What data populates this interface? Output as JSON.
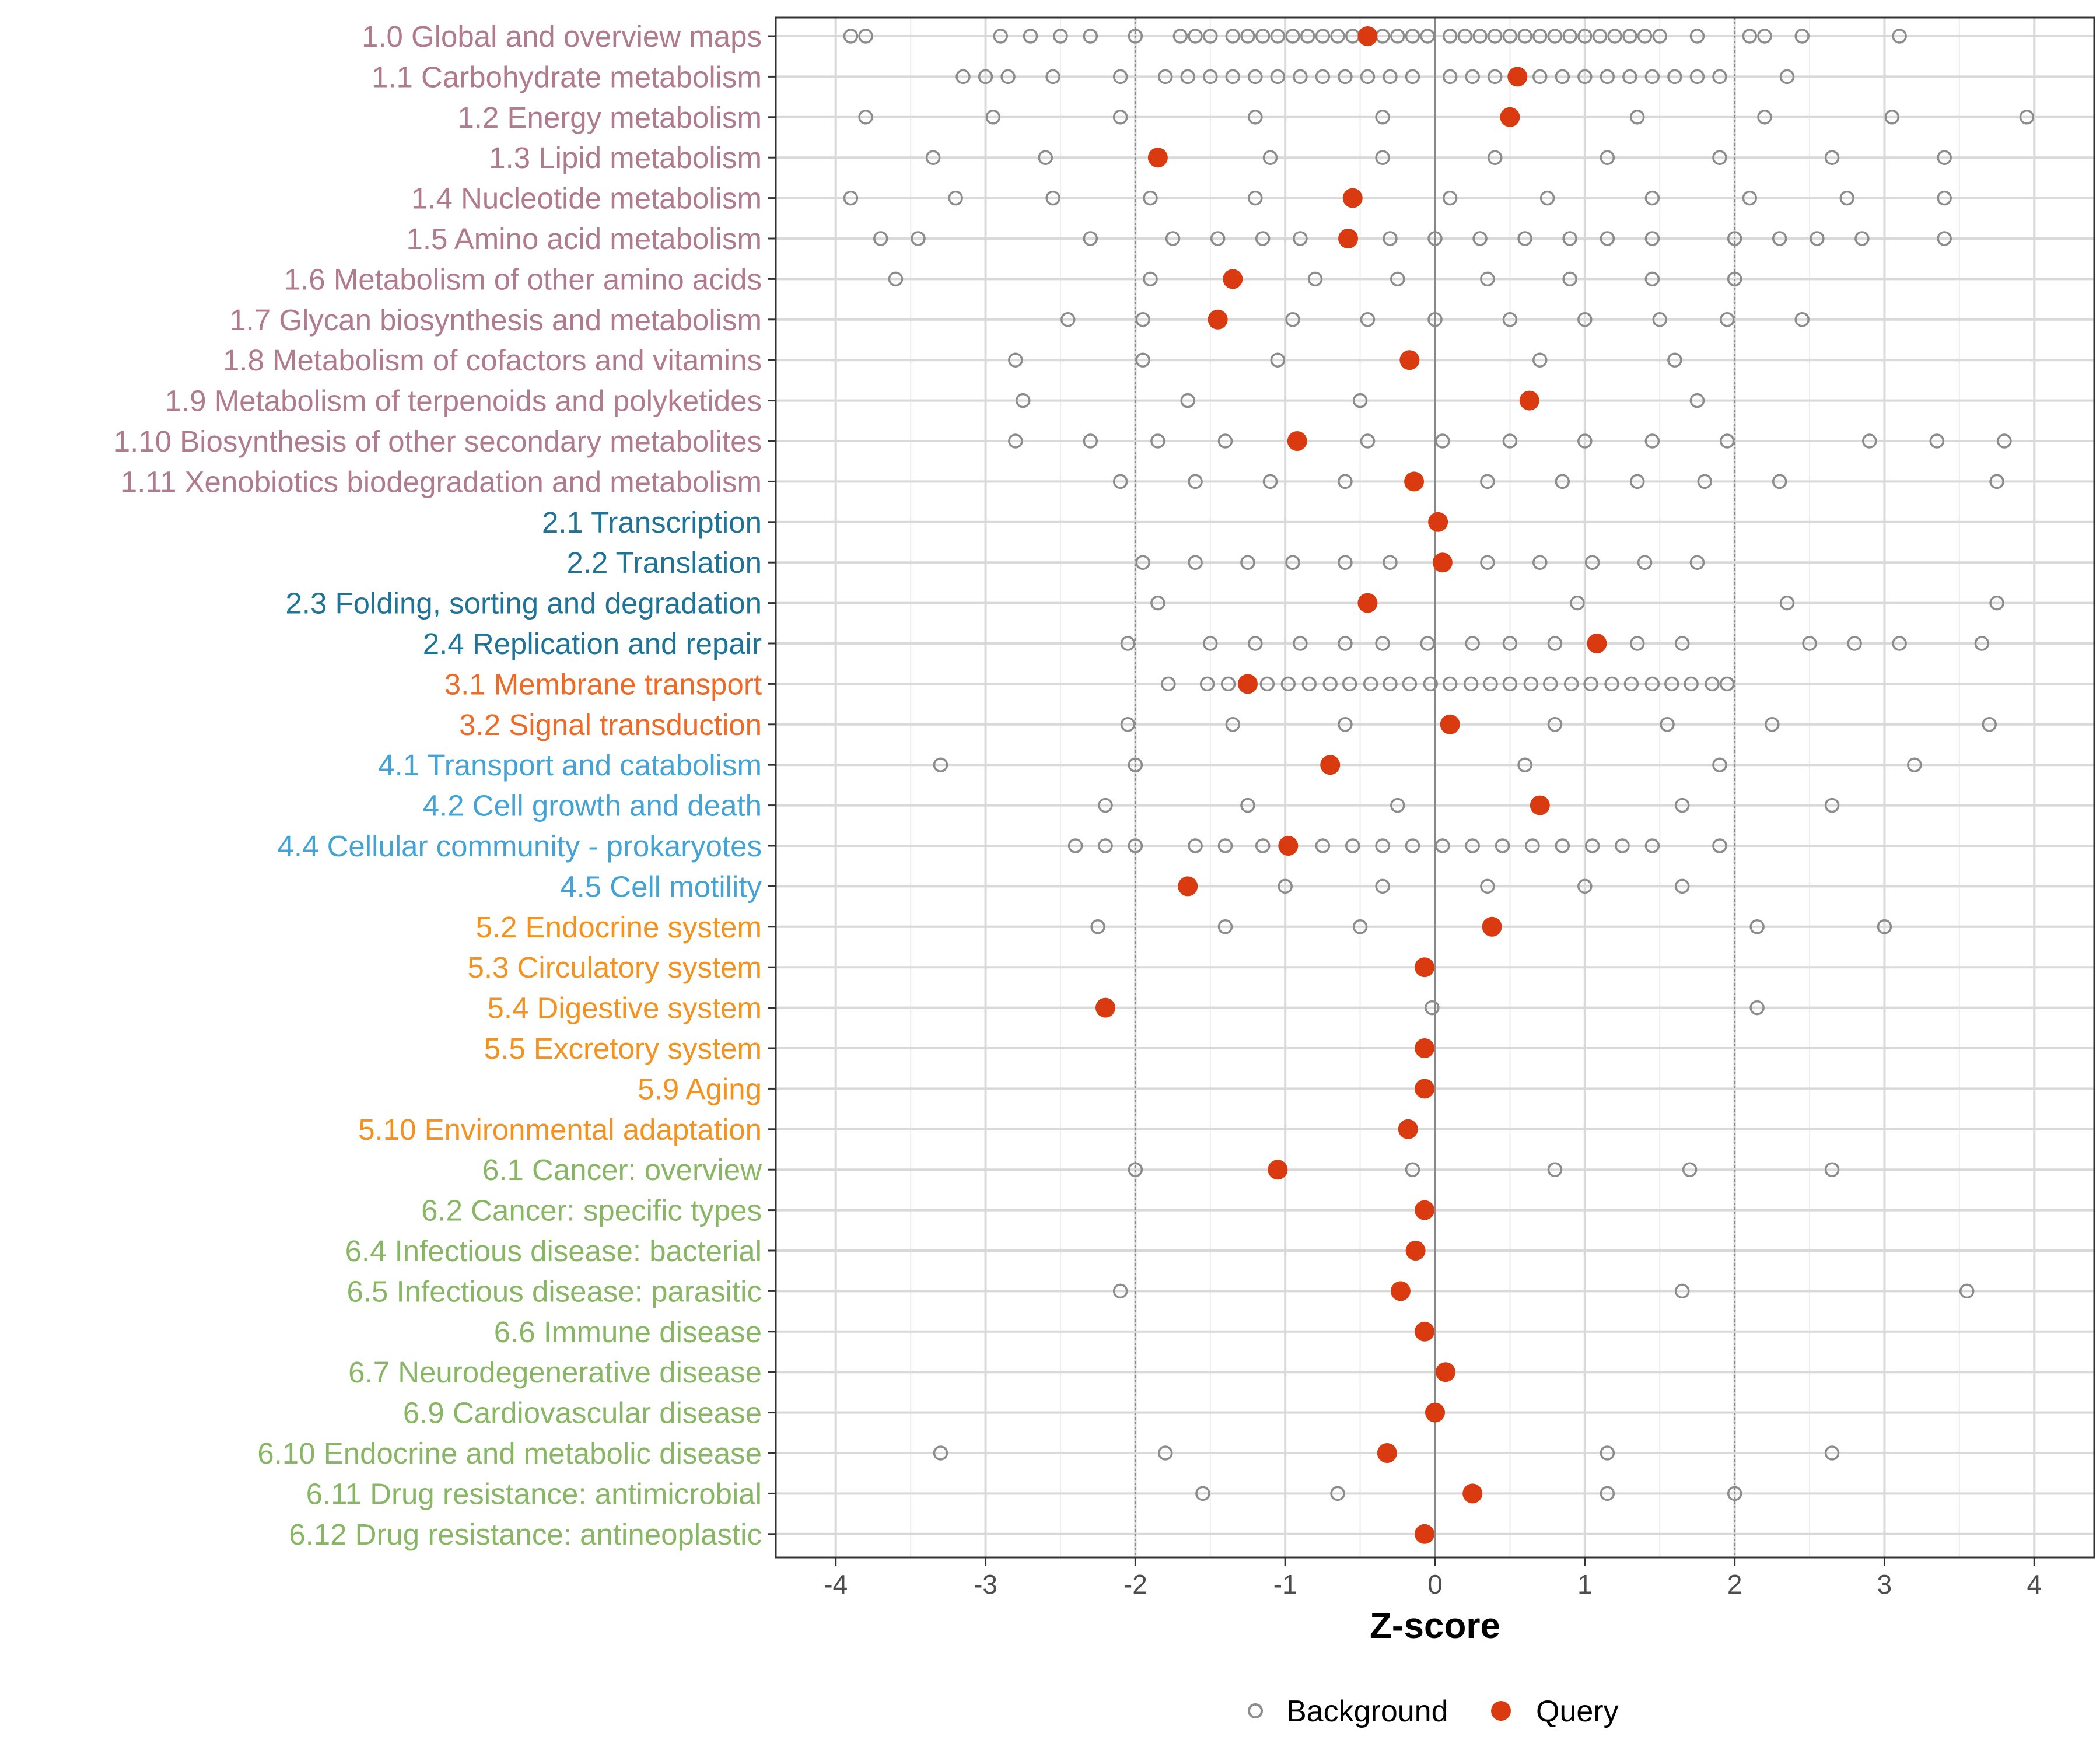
{
  "chart_data": {
    "type": "scatter",
    "xlabel": "Z-score",
    "xlim": [
      -4.4,
      4.4
    ],
    "xticks": [
      "-4",
      "-3",
      "-2",
      "-1",
      "0",
      "1",
      "2",
      "3",
      "4"
    ],
    "xtick_values": [
      -4,
      -3,
      -2,
      -1,
      0,
      1,
      2,
      3,
      4
    ],
    "reference_lines": [
      -2,
      0,
      2
    ],
    "legend": {
      "position": "bottom",
      "entries": [
        {
          "name": "Background",
          "marker": "open-circle",
          "color": "#8c8c8c"
        },
        {
          "name": "Query",
          "marker": "filled-circle",
          "color": "#d93a0f"
        }
      ]
    },
    "group_colors": {
      "1": "#b07b8d",
      "2": "#1f7396",
      "3": "#ef6a25",
      "4": "#44a3d4",
      "5": "#f3921f",
      "6": "#88b665"
    },
    "categories": [
      {
        "label": "1.0 Global and overview maps",
        "group": "1",
        "query": -0.45,
        "background": [
          -3.9,
          -3.8,
          -2.9,
          -2.7,
          -2.5,
          -2.3,
          -2.0,
          -1.7,
          -1.6,
          -1.5,
          -1.35,
          -1.25,
          -1.15,
          -1.05,
          -0.95,
          -0.85,
          -0.75,
          -0.65,
          -0.55,
          -0.35,
          -0.25,
          -0.15,
          -0.05,
          0.1,
          0.2,
          0.3,
          0.4,
          0.5,
          0.6,
          0.7,
          0.8,
          0.9,
          1.0,
          1.1,
          1.2,
          1.3,
          1.4,
          1.5,
          1.75,
          2.1,
          2.2,
          2.45,
          3.1
        ]
      },
      {
        "label": "1.1 Carbohydrate metabolism",
        "group": "1",
        "query": 0.55,
        "background": [
          -3.15,
          -3.0,
          -2.85,
          -2.55,
          -2.1,
          -1.8,
          -1.65,
          -1.5,
          -1.35,
          -1.2,
          -1.05,
          -0.9,
          -0.75,
          -0.6,
          -0.45,
          -0.3,
          -0.15,
          0.1,
          0.25,
          0.4,
          0.7,
          0.85,
          1.0,
          1.15,
          1.3,
          1.45,
          1.6,
          1.75,
          1.9,
          2.35
        ]
      },
      {
        "label": "1.2 Energy metabolism",
        "group": "1",
        "query": 0.5,
        "background": [
          -3.8,
          -2.95,
          -2.1,
          -1.2,
          -0.35,
          1.35,
          2.2,
          3.05,
          3.95
        ]
      },
      {
        "label": "1.3 Lipid metabolism",
        "group": "1",
        "query": -1.85,
        "background": [
          -3.35,
          -2.6,
          -1.1,
          -0.35,
          0.4,
          1.15,
          1.9,
          2.65,
          3.4
        ]
      },
      {
        "label": "1.4 Nucleotide metabolism",
        "group": "1",
        "query": -0.55,
        "background": [
          -3.9,
          -3.2,
          -2.55,
          -1.9,
          -1.2,
          0.1,
          0.75,
          1.45,
          2.1,
          2.75,
          3.4
        ]
      },
      {
        "label": "1.5 Amino acid metabolism",
        "group": "1",
        "query": -0.58,
        "background": [
          -3.7,
          -3.45,
          -2.3,
          -1.75,
          -1.45,
          -1.15,
          -0.9,
          -0.3,
          0.0,
          0.3,
          0.6,
          0.9,
          1.15,
          1.45,
          2.0,
          2.3,
          2.55,
          2.85,
          3.4
        ]
      },
      {
        "label": "1.6 Metabolism of other amino acids",
        "group": "1",
        "query": -1.35,
        "background": [
          -3.6,
          -1.9,
          -0.8,
          -0.25,
          0.35,
          0.9,
          1.45,
          2.0
        ]
      },
      {
        "label": "1.7 Glycan biosynthesis and metabolism",
        "group": "1",
        "query": -1.45,
        "background": [
          -2.45,
          -1.95,
          -0.95,
          -0.45,
          0.0,
          0.5,
          1.0,
          1.5,
          1.95,
          2.45
        ]
      },
      {
        "label": "1.8 Metabolism of cofactors and vitamins",
        "group": "1",
        "query": -0.17,
        "background": [
          -2.8,
          -1.95,
          -1.05,
          0.7,
          1.6
        ]
      },
      {
        "label": "1.9 Metabolism of terpenoids and polyketides",
        "group": "1",
        "query": 0.63,
        "background": [
          -2.75,
          -1.65,
          -0.5,
          1.75
        ]
      },
      {
        "label": "1.10 Biosynthesis of other secondary metabolites",
        "group": "1",
        "query": -0.92,
        "background": [
          -2.8,
          -2.3,
          -1.85,
          -1.4,
          -0.45,
          0.05,
          0.5,
          1.0,
          1.45,
          1.95,
          2.9,
          3.35,
          3.8
        ]
      },
      {
        "label": "1.11 Xenobiotics biodegradation and metabolism",
        "group": "1",
        "query": -0.14,
        "background": [
          -2.1,
          -1.6,
          -1.1,
          -0.6,
          0.35,
          0.85,
          1.35,
          1.8,
          2.3,
          3.75
        ]
      },
      {
        "label": "2.1 Transcription",
        "group": "2",
        "query": 0.02,
        "background": []
      },
      {
        "label": "2.2 Translation",
        "group": "2",
        "query": 0.05,
        "background": [
          -1.95,
          -1.6,
          -1.25,
          -0.95,
          -0.6,
          -0.3,
          0.35,
          0.7,
          1.05,
          1.4,
          1.75
        ]
      },
      {
        "label": "2.3 Folding, sorting and degradation",
        "group": "2",
        "query": -0.45,
        "background": [
          -1.85,
          0.95,
          2.35,
          3.75
        ]
      },
      {
        "label": "2.4 Replication and repair",
        "group": "2",
        "query": 1.08,
        "background": [
          -2.05,
          -1.5,
          -1.2,
          -0.9,
          -0.6,
          -0.35,
          -0.05,
          0.25,
          0.5,
          0.8,
          1.35,
          1.65,
          2.5,
          2.8,
          3.1,
          3.65
        ]
      },
      {
        "label": "3.1 Membrane transport",
        "group": "3",
        "query": -1.25,
        "background": [
          -1.78,
          -1.52,
          -1.38,
          -1.12,
          -0.98,
          -0.84,
          -0.7,
          -0.57,
          -0.43,
          -0.3,
          -0.17,
          -0.03,
          0.1,
          0.24,
          0.37,
          0.5,
          0.64,
          0.77,
          0.91,
          1.04,
          1.18,
          1.31,
          1.45,
          1.58,
          1.71,
          1.85,
          1.95
        ]
      },
      {
        "label": "3.2 Signal transduction",
        "group": "3",
        "query": 0.1,
        "background": [
          -2.05,
          -1.35,
          -0.6,
          0.8,
          1.55,
          2.25,
          3.7
        ]
      },
      {
        "label": "4.1 Transport and catabolism",
        "group": "4",
        "query": -0.7,
        "background": [
          -3.3,
          -2.0,
          0.6,
          1.9,
          3.2
        ]
      },
      {
        "label": "4.2 Cell growth and death",
        "group": "4",
        "query": 0.7,
        "background": [
          -2.2,
          -1.25,
          -0.25,
          1.65,
          2.65
        ]
      },
      {
        "label": "4.4 Cellular community - prokaryotes",
        "group": "4",
        "query": -0.98,
        "background": [
          -2.4,
          -2.2,
          -2.0,
          -1.6,
          -1.4,
          -1.15,
          -0.75,
          -0.55,
          -0.35,
          -0.15,
          0.05,
          0.25,
          0.45,
          0.65,
          0.85,
          1.05,
          1.25,
          1.45,
          1.9
        ]
      },
      {
        "label": "4.5 Cell motility",
        "group": "4",
        "query": -1.65,
        "background": [
          -1.0,
          -0.35,
          0.35,
          1.0,
          1.65
        ]
      },
      {
        "label": "5.2 Endocrine system",
        "group": "5",
        "query": 0.38,
        "background": [
          -2.25,
          -1.4,
          -0.5,
          2.15,
          3.0
        ]
      },
      {
        "label": "5.3 Circulatory system",
        "group": "5",
        "query": -0.07,
        "background": []
      },
      {
        "label": "5.4 Digestive system",
        "group": "5",
        "query": -2.2,
        "background": [
          -0.02,
          2.15
        ]
      },
      {
        "label": "5.5 Excretory system",
        "group": "5",
        "query": -0.07,
        "background": []
      },
      {
        "label": "5.9 Aging",
        "group": "5",
        "query": -0.07,
        "background": []
      },
      {
        "label": "5.10 Environmental adaptation",
        "group": "5",
        "query": -0.18,
        "background": []
      },
      {
        "label": "6.1 Cancer: overview",
        "group": "6",
        "query": -1.05,
        "background": [
          -2.0,
          -0.15,
          0.8,
          1.7,
          2.65
        ]
      },
      {
        "label": "6.2 Cancer: specific types",
        "group": "6",
        "query": -0.07,
        "background": []
      },
      {
        "label": "6.4 Infectious disease: bacterial",
        "group": "6",
        "query": -0.13,
        "background": []
      },
      {
        "label": "6.5 Infectious disease: parasitic",
        "group": "6",
        "query": -0.23,
        "background": [
          -2.1,
          1.65,
          3.55
        ]
      },
      {
        "label": "6.6 Immune disease",
        "group": "6",
        "query": -0.07,
        "background": []
      },
      {
        "label": "6.7 Neurodegenerative disease",
        "group": "6",
        "query": 0.07,
        "background": []
      },
      {
        "label": "6.9 Cardiovascular disease",
        "group": "6",
        "query": 0.0,
        "background": []
      },
      {
        "label": "6.10 Endocrine and metabolic disease",
        "group": "6",
        "query": -0.32,
        "background": [
          -3.3,
          -1.8,
          1.15,
          2.65
        ]
      },
      {
        "label": "6.11 Drug resistance: antimicrobial",
        "group": "6",
        "query": 0.25,
        "background": [
          -1.55,
          -0.65,
          1.15,
          2.0
        ]
      },
      {
        "label": "6.12 Drug resistance: antineoplastic",
        "group": "6",
        "query": -0.07,
        "background": []
      }
    ]
  }
}
